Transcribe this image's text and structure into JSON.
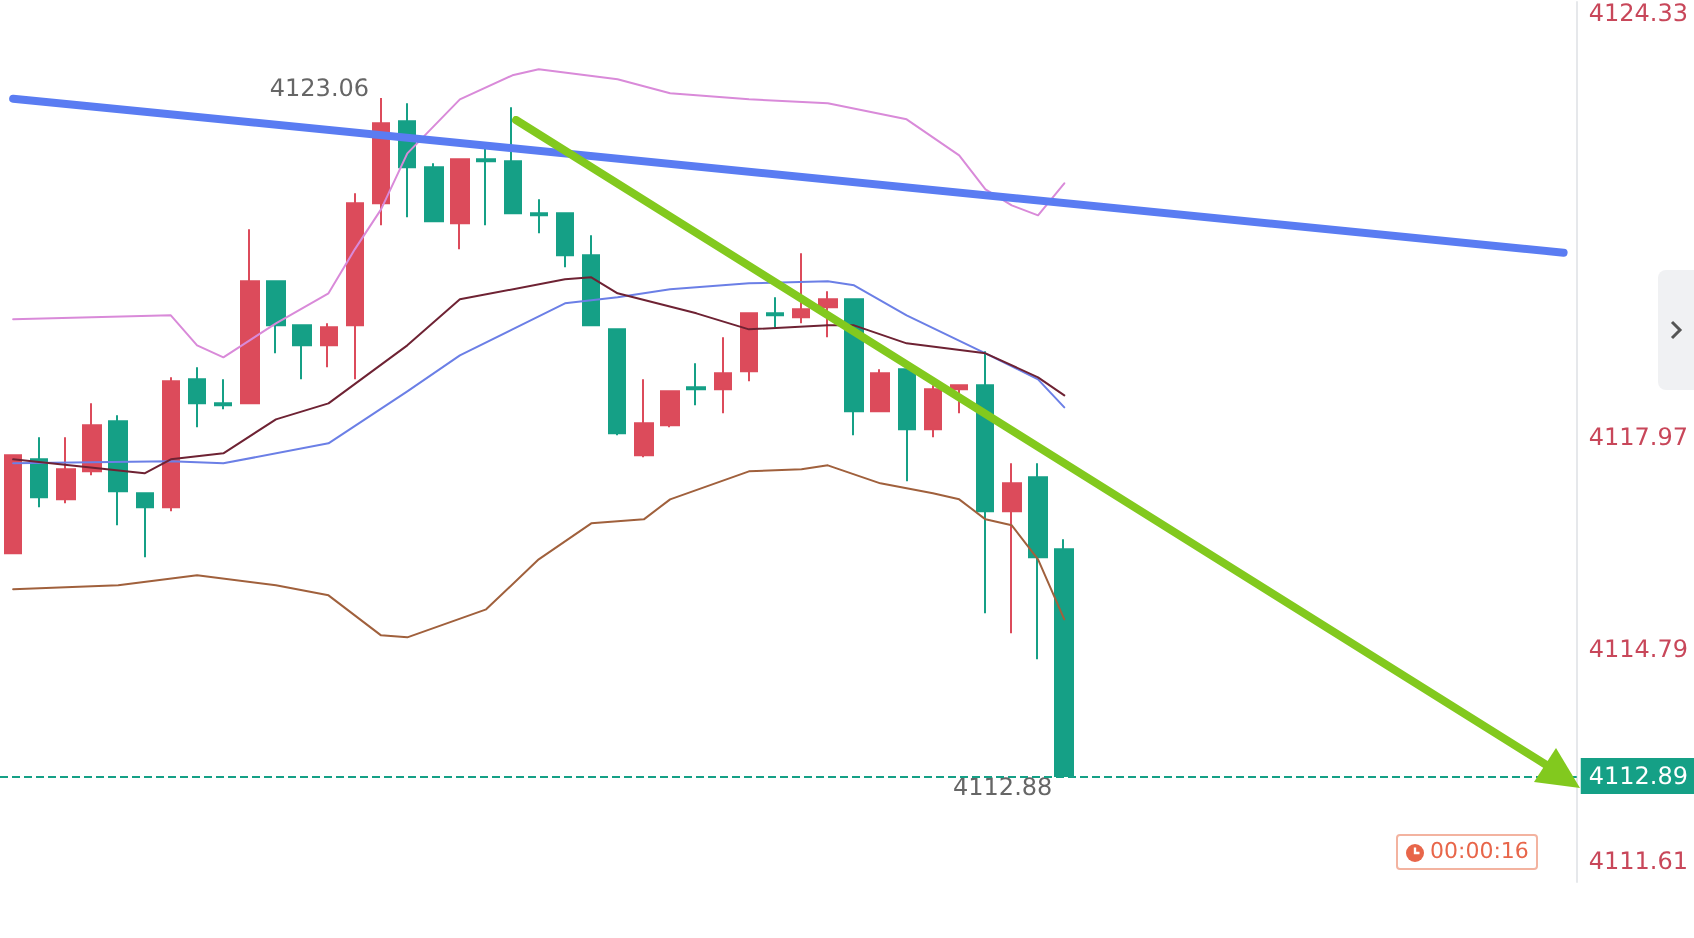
{
  "chart_data": {
    "type": "candlestick",
    "categories": [
      null,
      null,
      null,
      null,
      null,
      null,
      null,
      null,
      null,
      null,
      null,
      null,
      null,
      null,
      null,
      null,
      null,
      null,
      null,
      null,
      null,
      null,
      null,
      null,
      null,
      null,
      null,
      null,
      null,
      null,
      null,
      null,
      null,
      null,
      null,
      null,
      null,
      null,
      null,
      null,
      null,
      null,
      null,
      null,
      null,
      null,
      null,
      null,
      null,
      null,
      null,
      null,
      null,
      null,
      null,
      null,
      null,
      null,
      null,
      null
    ],
    "series": [
      {
        "type": "line",
        "color": "#d98ad9",
        "values": [
          4119.74,
          null,
          null,
          null,
          null,
          null,
          4119.8,
          4119.35,
          4119.17,
          null,
          4119.68,
          null,
          4120.13,
          4120.79,
          4121.39,
          4122.23,
          null,
          4123.04,
          null,
          4123.4,
          4123.49,
          null,
          null,
          4123.34,
          null,
          4123.13,
          null,
          null,
          4123.04,
          null,
          null,
          4122.98,
          null,
          null,
          4122.74,
          null,
          4122.2,
          4121.69,
          4121.45,
          4121.3,
          4121.78,
          null,
          null,
          null,
          null,
          null,
          null,
          null,
          null,
          null,
          null,
          null,
          null,
          null,
          null,
          null,
          null,
          null,
          null,
          null
        ]
      },
      {
        "type": "line",
        "color": "#6b7fe6",
        "values": [
          4117.58,
          null,
          null,
          null,
          null,
          null,
          4117.61,
          null,
          4117.58,
          null,
          null,
          null,
          4117.88,
          null,
          null,
          4118.66,
          null,
          4119.2,
          null,
          4119.59,
          null,
          4119.98,
          null,
          4120.07,
          null,
          4120.19,
          null,
          null,
          4120.28,
          null,
          null,
          4120.31,
          4120.25,
          null,
          4119.8,
          null,
          null,
          4119.23,
          null,
          4118.84,
          4118.42,
          null,
          null,
          null,
          null,
          null,
          null,
          null,
          null,
          null,
          null,
          null,
          null,
          null,
          null,
          null,
          null,
          null,
          null,
          null
        ]
      },
      {
        "type": "line",
        "color": "#6e2233",
        "values": [
          4117.64,
          null,
          null,
          null,
          null,
          4117.43,
          4117.64,
          null,
          4117.73,
          null,
          4118.24,
          null,
          4118.48,
          null,
          null,
          4119.35,
          null,
          4120.04,
          null,
          null,
          null,
          4120.34,
          4120.37,
          4120.13,
          null,
          null,
          4119.83,
          null,
          4119.59,
          null,
          null,
          4119.65,
          4119.65,
          null,
          4119.38,
          null,
          null,
          4119.23,
          null,
          4118.87,
          4118.6,
          null,
          null,
          null,
          null,
          null,
          null,
          null,
          null,
          null,
          null,
          null,
          null,
          null,
          null,
          null,
          null,
          null,
          null,
          null
        ]
      },
      {
        "type": "line",
        "color": "#a0603c",
        "values": [
          4115.69,
          null,
          null,
          null,
          4115.75,
          null,
          null,
          4115.9,
          null,
          null,
          4115.75,
          null,
          4115.6,
          null,
          4115.0,
          4114.97,
          null,
          null,
          4115.39,
          null,
          4116.14,
          null,
          4116.68,
          null,
          4116.74,
          4117.04,
          null,
          null,
          4117.46,
          null,
          4117.49,
          4117.55,
          null,
          4117.28,
          null,
          4117.13,
          4117.04,
          4116.74,
          4116.65,
          4116.14,
          4115.24,
          null,
          null,
          null,
          null,
          null,
          null,
          null,
          null,
          null,
          null,
          null,
          null,
          null,
          null,
          null,
          null,
          null,
          null,
          null
        ]
      },
      {
        "ohlc": [
          [
            4116.23,
            4117.7,
            4116.23,
            4117.7
          ],
          [
            4117.64,
            4117.97,
            4116.92,
            4117.07
          ],
          [
            4117.04,
            4117.97,
            4116.98,
            4117.49
          ],
          [
            4117.46,
            4118.48,
            4117.4,
            4118.15
          ],
          [
            4118.21,
            4118.3,
            4116.65,
            4117.16
          ],
          [
            4117.13,
            4117.13,
            4116.17,
            4116.92
          ],
          [
            4116.92,
            4118.87,
            4116.86,
            4118.81
          ],
          [
            4118.84,
            4119.02,
            4118.12,
            4118.48
          ],
          [
            4118.48,
            4118.84,
            4118.39,
            4118.45
          ],
          [
            4118.48,
            4121.09,
            4118.48,
            4120.31
          ],
          [
            4120.31,
            4120.31,
            4119.23,
            4119.65
          ],
          [
            4119.65,
            4119.65,
            4118.84,
            4119.35
          ],
          [
            4119.35,
            4119.68,
            4119.02,
            4119.62
          ],
          [
            4119.65,
            4121.63,
            4118.84,
            4121.48
          ],
          [
            4121.48,
            4123.06,
            4121.15,
            4122.68
          ],
          [
            4122.71,
            4122.98,
            4121.27,
            4122.02
          ],
          [
            4122.02,
            4122.08,
            4121.21,
            4121.21
          ],
          [
            4121.18,
            4122.14,
            4120.79,
            4122.14
          ],
          [
            4122.14,
            4122.35,
            4121.15,
            4122.11
          ],
          [
            4122.11,
            4122.92,
            4121.33,
            4121.33
          ],
          [
            4121.33,
            4121.54,
            4121.03,
            4121.3
          ],
          [
            4121.33,
            4121.33,
            4120.52,
            4120.7
          ],
          [
            4120.7,
            4121.0,
            4119.65,
            4119.65
          ],
          [
            4119.59,
            4119.59,
            4118.0,
            4118.03
          ],
          [
            4117.7,
            4118.84,
            4117.67,
            4118.18
          ],
          [
            4118.15,
            4118.66,
            4118.12,
            4118.66
          ],
          [
            4118.72,
            4119.08,
            4118.45,
            4118.69
          ],
          [
            4118.69,
            4119.47,
            4118.33,
            4118.93
          ],
          [
            4118.96,
            4119.83,
            4118.81,
            4119.83
          ],
          [
            4119.83,
            4120.07,
            4119.62,
            4119.8
          ],
          [
            4119.77,
            4120.73,
            4119.68,
            4119.89
          ],
          [
            4119.92,
            4120.16,
            4119.47,
            4120.04
          ],
          [
            4120.04,
            4120.04,
            4118.0,
            4118.36
          ],
          [
            4118.36,
            4118.99,
            4118.36,
            4118.93
          ],
          [
            4118.99,
            4118.99,
            4117.31,
            4118.09
          ],
          [
            4118.09,
            4118.75,
            4117.97,
            4118.69
          ],
          [
            4118.69,
            4118.75,
            4118.33,
            4118.75
          ],
          [
            4118.75,
            4119.26,
            4115.33,
            4116.86
          ],
          [
            4116.86,
            4117.58,
            4115.03,
            4117.28
          ],
          [
            4117.37,
            4117.58,
            4114.64,
            4116.17
          ],
          [
            4116.29,
            4116.44,
            4112.88,
            4112.89
          ],
          null,
          null,
          null,
          null,
          null,
          null,
          null,
          null,
          null,
          null,
          null,
          null,
          null,
          null,
          null,
          null,
          null,
          null,
          null
        ],
        "colors": [
          "#dc4b5b",
          "#15a086",
          "#dc4b5b",
          "#dc4b5b",
          "#15a086",
          "#15a086",
          "#dc4b5b",
          "#15a086",
          "#15a086",
          "#dc4b5b",
          "#15a086",
          "#15a086",
          "#dc4b5b",
          "#dc4b5b",
          "#dc4b5b",
          "#15a086",
          "#15a086",
          "#dc4b5b",
          "#15a086",
          "#15a086",
          "#15a086",
          "#15a086",
          "#15a086",
          "#15a086",
          "#dc4b5b",
          "#dc4b5b",
          "#15a086",
          "#dc4b5b",
          "#dc4b5b",
          "#15a086",
          "#dc4b5b",
          "#dc4b5b",
          "#15a086",
          "#dc4b5b",
          "#15a086",
          "#dc4b5b",
          "#dc4b5b",
          "#15a086",
          "#dc4b5b",
          "#15a086",
          "#15a086",
          null,
          null,
          null,
          null,
          null,
          null,
          null,
          null,
          null,
          null,
          null,
          null,
          null,
          null,
          null,
          null,
          null,
          null,
          null
        ]
      },
      {
        "type": "line",
        "color": "#5a7cf2",
        "values": [
          4123.05,
          null,
          null,
          null,
          null,
          null,
          null,
          null,
          null,
          null,
          null,
          null,
          null,
          null,
          null,
          null,
          null,
          null,
          null,
          null,
          null,
          null,
          null,
          null,
          null,
          null,
          null,
          null,
          null,
          null,
          null,
          null,
          null,
          null,
          null,
          null,
          null,
          null,
          null,
          null,
          null,
          null,
          null,
          null,
          null,
          null,
          null,
          null,
          null,
          null,
          null,
          null,
          null,
          null,
          null,
          null,
          null,
          null,
          null,
          4120.74
        ]
      }
    ],
    "ylim": [
      4111.3,
      4124.5
    ],
    "yticks": [
      4111.61,
      4114.79,
      4117.97,
      4124.33
    ],
    "tick_labels": "y",
    "grid": false,
    "ref_lines": [
      {
        "axis": "y",
        "value": 4112.89,
        "label": "4112.89",
        "color": "#15a086",
        "line_style": "dashed"
      }
    ],
    "annotations": [
      "4123.06",
      "4112.88",
      "00:00:16"
    ]
  }
}
